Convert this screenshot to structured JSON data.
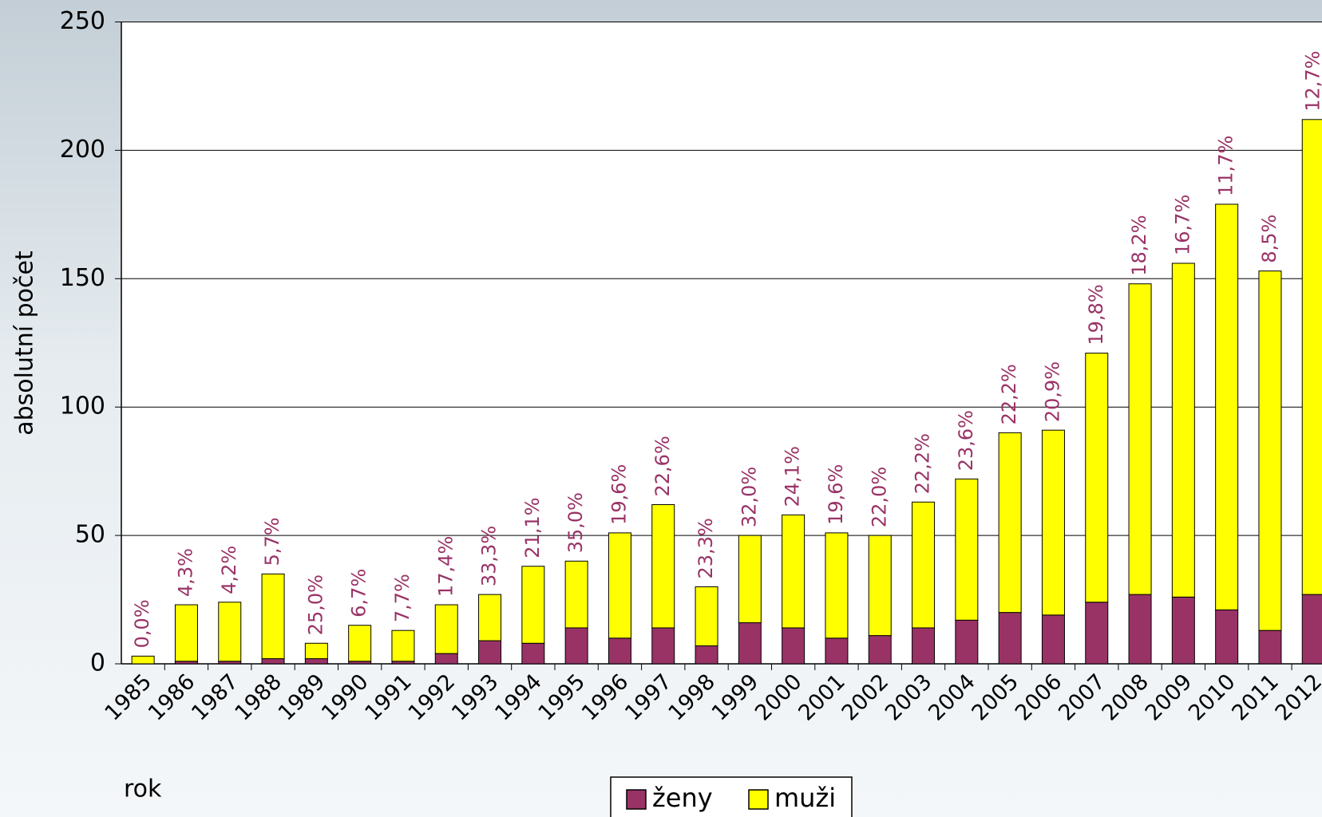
{
  "chart_data": {
    "type": "stacked_bar",
    "ylabel": "absolutní počet",
    "xlabel": "rok",
    "categories": [
      "1985",
      "1986",
      "1987",
      "1988",
      "1989",
      "1990",
      "1991",
      "1992",
      "1993",
      "1994",
      "1995",
      "1996",
      "1997",
      "1998",
      "1999",
      "2000",
      "2001",
      "2002",
      "2003",
      "2004",
      "2005",
      "2006",
      "2007",
      "2008",
      "2009",
      "2010",
      "2011",
      "2012"
    ],
    "series": [
      {
        "name": "ženy",
        "color": "#993366",
        "values": [
          0,
          1,
          1,
          2,
          2,
          1,
          1,
          4,
          9,
          8,
          14,
          10,
          14,
          7,
          16,
          14,
          10,
          11,
          14,
          17,
          20,
          19,
          24,
          27,
          26,
          21,
          13,
          27
        ]
      },
      {
        "name": "muži",
        "color": "#ffff00",
        "values": [
          3,
          22,
          23,
          33,
          6,
          14,
          12,
          19,
          18,
          30,
          26,
          41,
          48,
          23,
          34,
          44,
          41,
          39,
          49,
          55,
          70,
          72,
          97,
          121,
          130,
          158,
          140,
          185
        ]
      }
    ],
    "bar_labels": [
      "0,0%",
      "4,3%",
      "4,2%",
      "5,7%",
      "25,0%",
      "6,7%",
      "7,7%",
      "17,4%",
      "33,3%",
      "21,1%",
      "35,0%",
      "19,6%",
      "22,6%",
      "23,3%",
      "32,0%",
      "24,1%",
      "19,6%",
      "22,0%",
      "22,2%",
      "23,6%",
      "22,2%",
      "20,9%",
      "19,8%",
      "18,2%",
      "16,7%",
      "11,7%",
      "8,5%",
      "12,7%"
    ],
    "ylim": [
      0,
      250
    ],
    "yticks": [
      0,
      50,
      100,
      150,
      200,
      250
    ],
    "grid": true,
    "legend": "bottom"
  }
}
